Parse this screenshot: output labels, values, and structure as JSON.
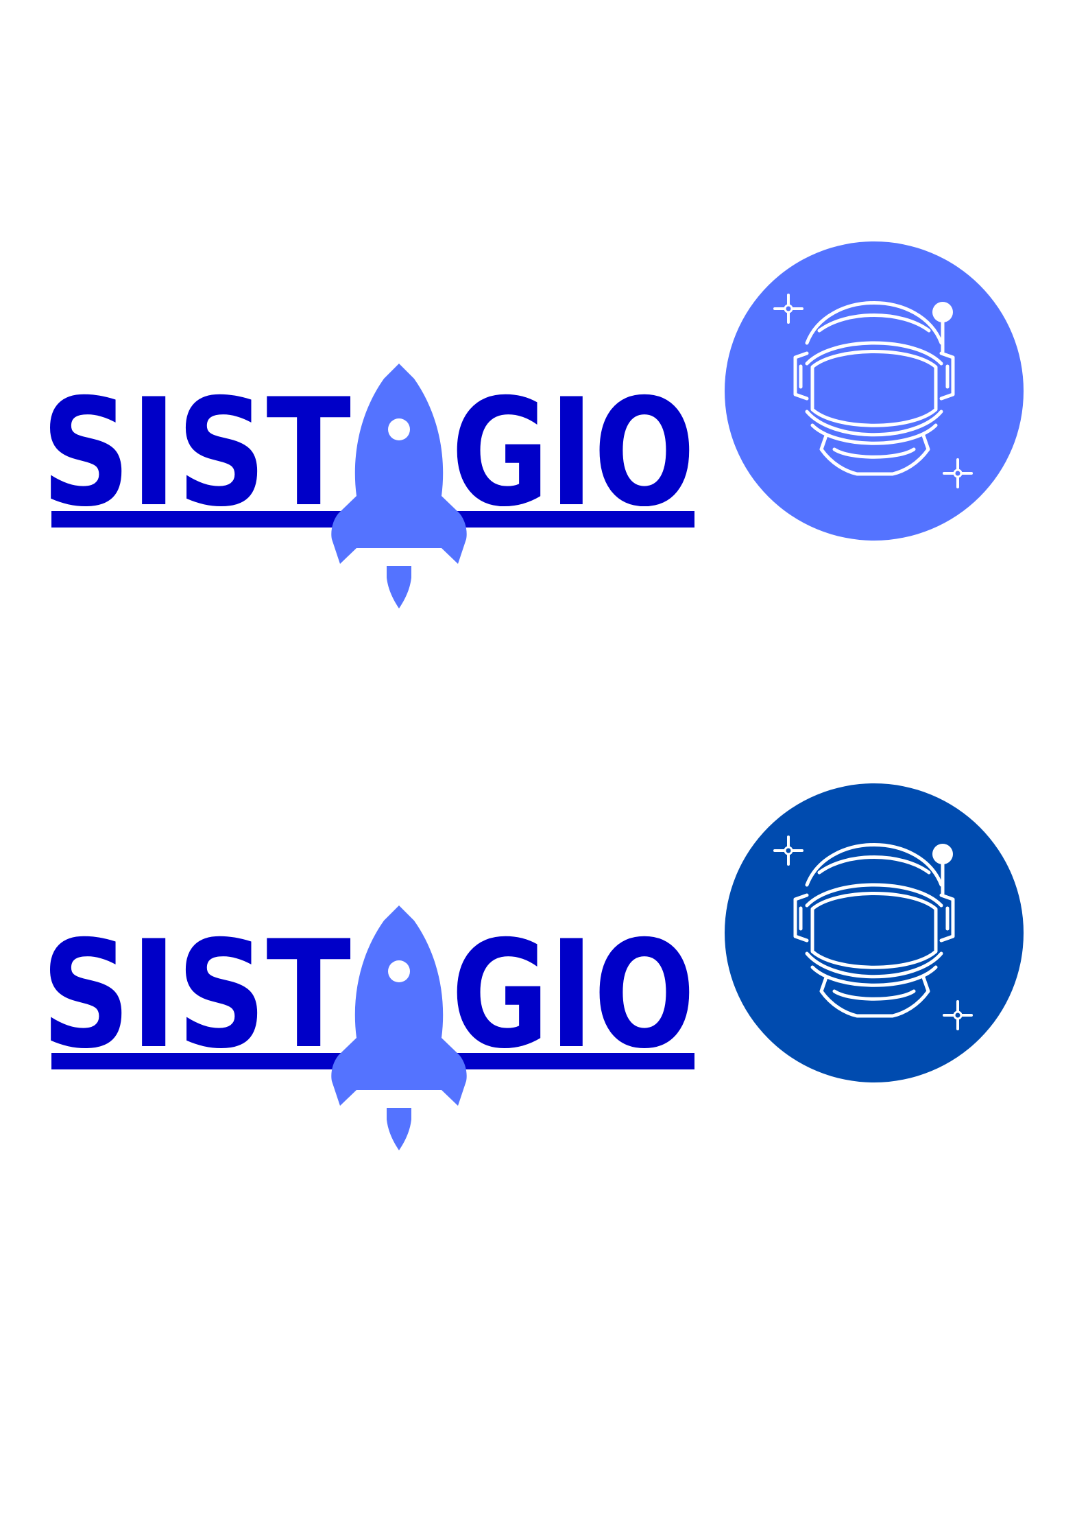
{
  "logos": [
    {
      "text_left": "SIST",
      "text_right": "GIO",
      "wordmark_color": "#0000c8",
      "rocket_color": "#5473ff",
      "badge_color": "#5473ff",
      "icon_color": "#ffffff",
      "rocket_icon": "rocket-icon",
      "badge_icon": "astronaut-helmet-icon"
    },
    {
      "text_left": "SIST",
      "text_right": "GIO",
      "wordmark_color": "#0000c8",
      "rocket_color": "#5473ff",
      "badge_color": "#004baf",
      "icon_color": "#ffffff",
      "rocket_icon": "rocket-icon",
      "badge_icon": "astronaut-helmet-icon"
    }
  ]
}
